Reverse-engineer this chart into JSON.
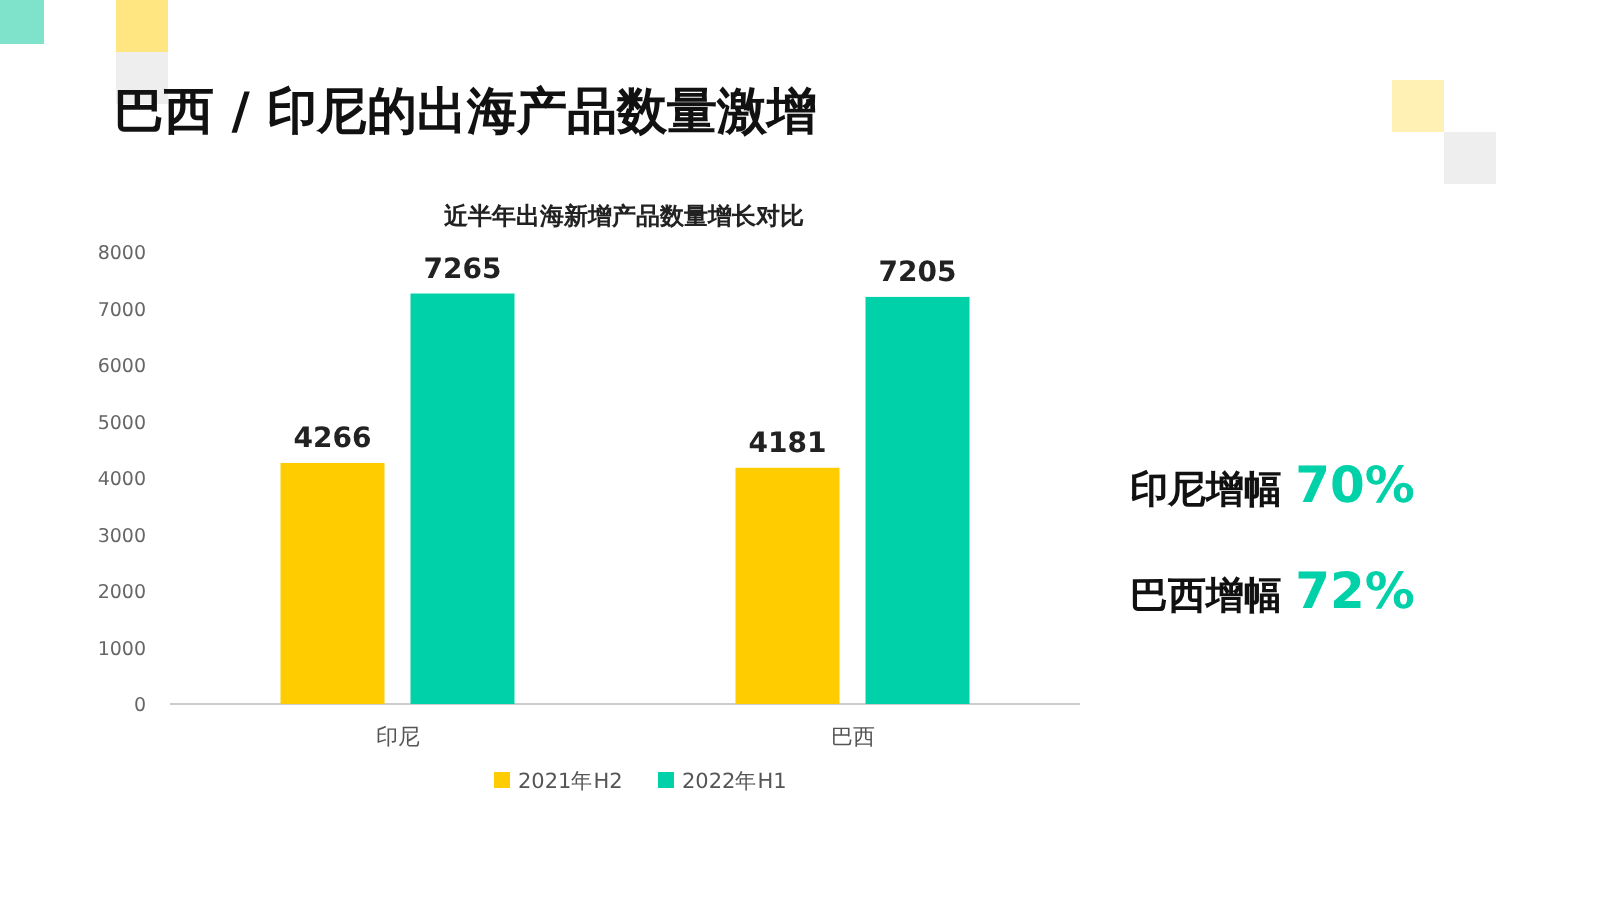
{
  "chart_data": {
    "type": "bar",
    "title": "巴西 / 印尼的出海产品数量激增",
    "subtitle": "近半年出海新增产品数量增长对比",
    "categories": [
      "印尼",
      "巴西"
    ],
    "series": [
      {
        "name": "2021年H2",
        "color": "#ffcc00",
        "values": [
          4266,
          4181
        ]
      },
      {
        "name": "2022年H1",
        "color": "#00d1a8",
        "values": [
          7265,
          7205
        ]
      }
    ],
    "ylim": [
      0,
      8000
    ],
    "yticks": [
      0,
      1000,
      2000,
      3000,
      4000,
      5000,
      6000,
      7000,
      8000
    ],
    "grid": false,
    "data_labels": true,
    "legend": "bottom",
    "annotations": [
      "印尼增幅 70%",
      "巴西增幅 72%"
    ]
  }
}
